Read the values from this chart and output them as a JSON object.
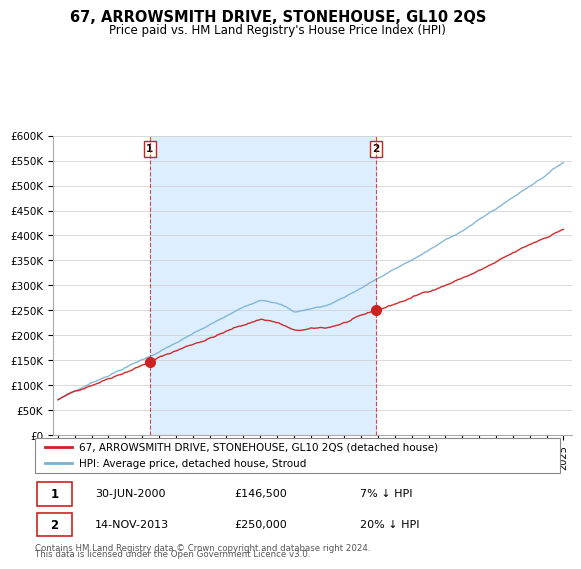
{
  "title": "67, ARROWSMITH DRIVE, STONEHOUSE, GL10 2QS",
  "subtitle": "Price paid vs. HM Land Registry's House Price Index (HPI)",
  "legend_line1": "67, ARROWSMITH DRIVE, STONEHOUSE, GL10 2QS (detached house)",
  "legend_line2": "HPI: Average price, detached house, Stroud",
  "annotation1_date": "30-JUN-2000",
  "annotation1_price": "£146,500",
  "annotation1_pct": "7% ↓ HPI",
  "annotation2_date": "14-NOV-2013",
  "annotation2_price": "£250,000",
  "annotation2_pct": "20% ↓ HPI",
  "footer": "Contains HM Land Registry data © Crown copyright and database right 2024.\nThis data is licensed under the Open Government Licence v3.0.",
  "red_color": "#cc2222",
  "blue_color": "#7ab0d4",
  "fill_color": "#ddeeff",
  "ylim": [
    0,
    600000
  ],
  "yticks": [
    0,
    50000,
    100000,
    150000,
    200000,
    250000,
    300000,
    350000,
    400000,
    450000,
    500000,
    550000,
    600000
  ],
  "ytick_labels": [
    "£0",
    "£50K",
    "£100K",
    "£150K",
    "£200K",
    "£250K",
    "£300K",
    "£350K",
    "£400K",
    "£450K",
    "£500K",
    "£550K",
    "£600K"
  ],
  "sale1_year": 2000.458,
  "sale1_price": 146500,
  "sale2_year": 2013.875,
  "sale2_price": 250000,
  "start_year": 1995,
  "end_year": 2025,
  "n_points": 360
}
